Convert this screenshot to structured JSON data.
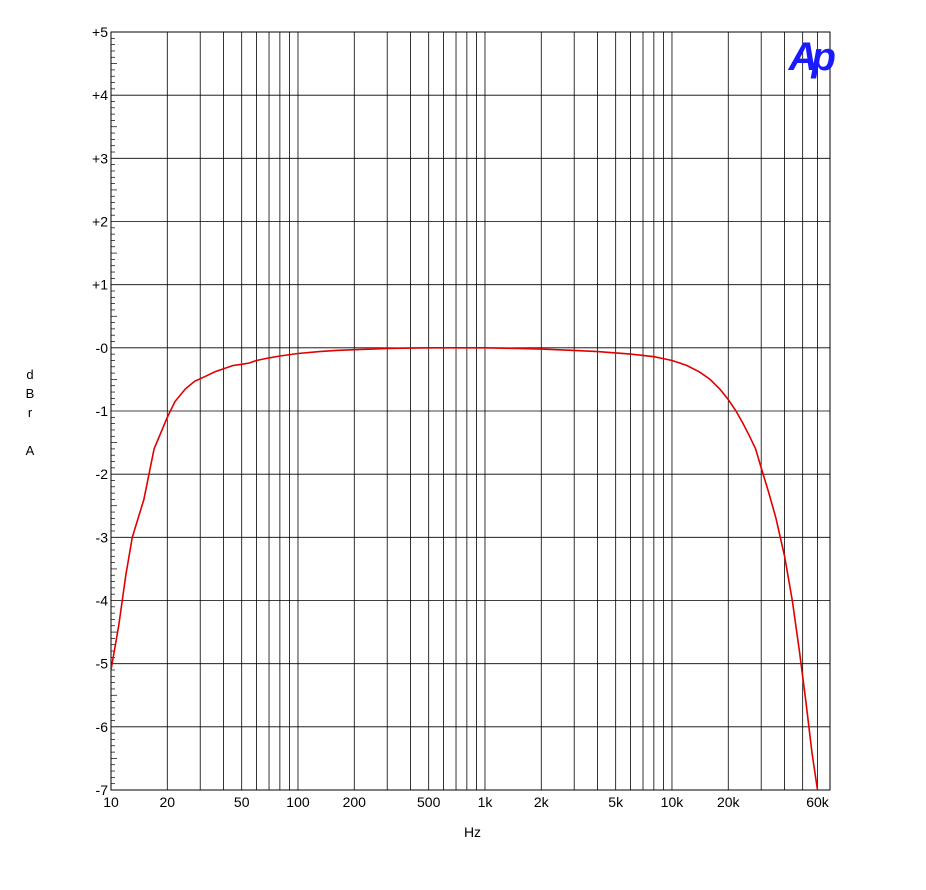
{
  "chart_data": {
    "type": "line",
    "title": "",
    "xlabel": "Hz",
    "ylabel": "dBr A",
    "ylabel_chars": [
      "d",
      "B",
      "r",
      "",
      "A"
    ],
    "x_scale": "log",
    "xlim": [
      10,
      70000
    ],
    "ylim": [
      -7,
      5
    ],
    "x_tick_values": [
      10,
      20,
      50,
      100,
      200,
      500,
      1000,
      2000,
      5000,
      10000,
      20000,
      60000
    ],
    "x_tick_labels": [
      "10",
      "20",
      "50",
      "100",
      "200",
      "500",
      "1k",
      "2k",
      "5k",
      "10k",
      "20k",
      "60k"
    ],
    "y_tick_values": [
      5,
      4,
      3,
      2,
      1,
      0,
      -1,
      -2,
      -3,
      -4,
      -5,
      -6,
      -7
    ],
    "y_tick_labels": [
      "+5",
      "+4",
      "+3",
      "+2",
      "+1",
      "-0",
      "-1",
      "-2",
      "-3",
      "-4",
      "-5",
      "-6",
      "-7"
    ],
    "grid": true,
    "logo": "Ap",
    "colors": {
      "line": "#e00000",
      "grid": "#000000",
      "logo": "#1a1aff"
    },
    "series": [
      {
        "x": [
          10,
          11,
          12,
          13,
          15,
          17,
          20,
          22,
          25,
          28,
          32,
          36,
          40,
          45,
          50,
          55,
          60,
          70,
          80,
          100,
          130,
          160,
          200,
          250,
          300,
          400,
          500,
          700,
          1000,
          1500,
          2000,
          3000,
          4000,
          5000,
          6000,
          7000,
          8000,
          9000,
          10000,
          11000,
          12000,
          14000,
          16000,
          18000,
          20000,
          22000,
          24000,
          26000,
          28000,
          30000,
          33000,
          36000,
          40000,
          44000,
          48000,
          52000,
          56000,
          60000,
          65000
        ],
        "values": [
          -5.1,
          -4.4,
          -3.6,
          -3.0,
          -2.4,
          -1.6,
          -1.1,
          -0.85,
          -0.65,
          -0.53,
          -0.45,
          -0.38,
          -0.33,
          -0.28,
          -0.26,
          -0.24,
          -0.2,
          -0.16,
          -0.13,
          -0.09,
          -0.06,
          -0.04,
          -0.03,
          -0.02,
          -0.01,
          -0.005,
          0.0,
          0.0,
          0.0,
          -0.01,
          -0.02,
          -0.04,
          -0.06,
          -0.08,
          -0.1,
          -0.12,
          -0.14,
          -0.17,
          -0.2,
          -0.24,
          -0.28,
          -0.38,
          -0.5,
          -0.65,
          -0.82,
          -1.0,
          -1.2,
          -1.4,
          -1.6,
          -1.9,
          -2.3,
          -2.7,
          -3.3,
          -4.0,
          -4.8,
          -5.6,
          -6.4,
          -7.0,
          -7.5
        ]
      }
    ]
  }
}
